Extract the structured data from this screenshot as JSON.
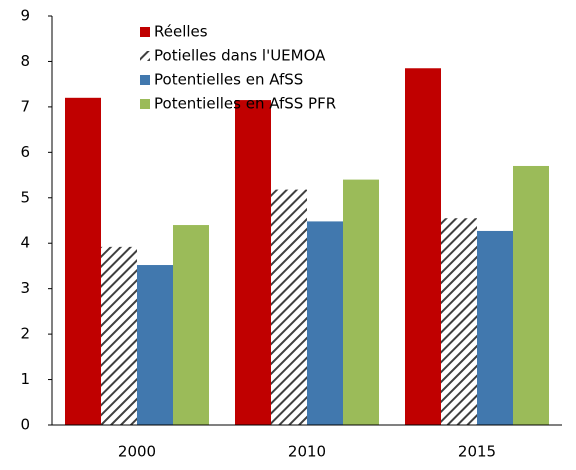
{
  "chart_data": {
    "type": "bar",
    "categories": [
      "2000",
      "2010",
      "2015"
    ],
    "series": [
      {
        "name": "Réelles",
        "color": "#c00000",
        "values": [
          7.2,
          7.15,
          7.85
        ]
      },
      {
        "name": "Potielles dans l'UEMOA",
        "color": "#404040",
        "pattern": "hatch",
        "values": [
          3.92,
          5.18,
          4.55
        ]
      },
      {
        "name": "Potentielles en AfSS",
        "color": "#4178ae",
        "values": [
          3.52,
          4.48,
          4.27
        ]
      },
      {
        "name": "Potentielles en AfSS PFR",
        "color": "#9bbb59",
        "values": [
          4.4,
          5.4,
          5.7
        ]
      }
    ],
    "ylim": [
      0,
      9
    ],
    "yticks": [
      0,
      1,
      2,
      3,
      4,
      5,
      6,
      7,
      8,
      9
    ],
    "grid": false,
    "legend": "top-left"
  }
}
